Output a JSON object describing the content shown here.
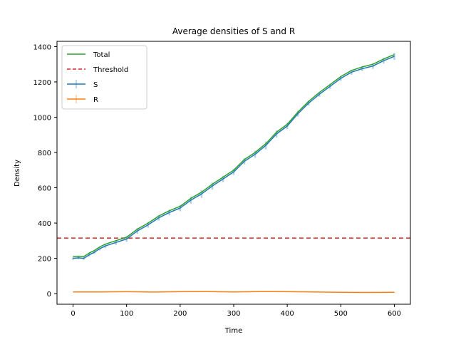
{
  "chart_data": {
    "type": "line",
    "title": "Average densities of S and R",
    "xlabel": "Time",
    "ylabel": "Density",
    "xlim": [
      -30,
      630
    ],
    "ylim": [
      -60,
      1430
    ],
    "xticks": [
      0,
      100,
      200,
      300,
      400,
      500,
      600
    ],
    "yticks": [
      0,
      200,
      400,
      600,
      800,
      1000,
      1200,
      1400
    ],
    "grid": false,
    "legend_position": "top-left",
    "legend": [
      "Total",
      "Threshold",
      "S",
      "R"
    ],
    "threshold": 315,
    "series": [
      {
        "name": "Total",
        "style": "solid",
        "color": "#2ca02c",
        "x": [
          0,
          10,
          20,
          30,
          40,
          50,
          60,
          80,
          100,
          120,
          140,
          160,
          180,
          200,
          220,
          240,
          260,
          280,
          300,
          320,
          340,
          360,
          380,
          400,
          420,
          440,
          460,
          480,
          500,
          520,
          540,
          560,
          580,
          600
        ],
        "y": [
          210,
          212,
          210,
          230,
          245,
          265,
          280,
          300,
          320,
          365,
          400,
          440,
          470,
          495,
          540,
          575,
          620,
          660,
          700,
          760,
          800,
          850,
          915,
          960,
          1030,
          1090,
          1140,
          1185,
          1230,
          1265,
          1285,
          1300,
          1330,
          1355
        ]
      },
      {
        "name": "Threshold",
        "style": "dashed",
        "color": "#d62728",
        "x": [
          -30,
          630
        ],
        "y": [
          315,
          315
        ]
      },
      {
        "name": "S",
        "style": "solid",
        "color": "#1f77b4",
        "errorbar": true,
        "x": [
          0,
          10,
          20,
          30,
          40,
          50,
          60,
          80,
          100,
          120,
          140,
          160,
          180,
          200,
          220,
          240,
          260,
          280,
          300,
          320,
          340,
          360,
          380,
          400,
          420,
          440,
          460,
          480,
          500,
          520,
          540,
          560,
          580,
          600
        ],
        "y": [
          200,
          203,
          200,
          220,
          235,
          255,
          270,
          290,
          310,
          355,
          390,
          430,
          460,
          485,
          530,
          565,
          610,
          650,
          690,
          750,
          790,
          840,
          905,
          950,
          1020,
          1080,
          1130,
          1175,
          1220,
          1255,
          1275,
          1290,
          1320,
          1345
        ],
        "err": [
          8,
          8,
          8,
          10,
          10,
          10,
          12,
          14,
          16,
          16,
          16,
          16,
          16,
          18,
          20,
          22,
          20,
          18,
          18,
          18,
          20,
          22,
          20,
          18,
          16,
          14,
          14,
          14,
          14,
          14,
          14,
          16,
          16,
          20
        ]
      },
      {
        "name": "R",
        "style": "solid",
        "color": "#ff7f0e",
        "x": [
          0,
          50,
          100,
          150,
          200,
          250,
          300,
          350,
          400,
          450,
          500,
          550,
          600
        ],
        "y": [
          10,
          10,
          11,
          9,
          11,
          12,
          10,
          12,
          11,
          10,
          8,
          7,
          8
        ]
      }
    ]
  }
}
